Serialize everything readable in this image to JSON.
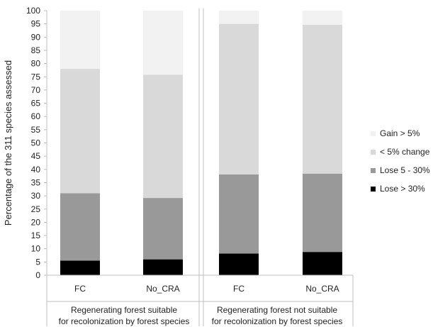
{
  "chart_data": {
    "type": "bar",
    "stacked": true,
    "ylabel": "Percentage of the 311 species assessed",
    "ylim": [
      0,
      100
    ],
    "yticks": [
      0,
      5,
      10,
      15,
      20,
      25,
      30,
      35,
      40,
      45,
      50,
      55,
      60,
      65,
      70,
      75,
      80,
      85,
      90,
      95,
      100
    ],
    "grid": false,
    "legend_position": "right",
    "groups": [
      {
        "label_line1": "Regenerating forest suitable",
        "label_line2": "for recolonization by forest species"
      },
      {
        "label_line1": "Regenerating forest not suitable",
        "label_line2": "for recolonization by forest species"
      }
    ],
    "categories": [
      "FC",
      "No_CRA",
      "FC",
      "No_CRA"
    ],
    "series": [
      {
        "name": "Lose > 30%",
        "color": "#000000",
        "values": [
          5.5,
          6,
          8.2,
          8.8
        ]
      },
      {
        "name": "Lose 5 - 30%",
        "color": "#999999",
        "values": [
          25.5,
          23.2,
          29.9,
          29.6
        ]
      },
      {
        "name": "< 5% change",
        "color": "#d9d9d9",
        "values": [
          47,
          46.6,
          56.9,
          56.3
        ]
      },
      {
        "name": "Gain > 5%",
        "color": "#f2f2f2",
        "values": [
          22,
          24.2,
          5,
          5.3
        ]
      }
    ]
  }
}
